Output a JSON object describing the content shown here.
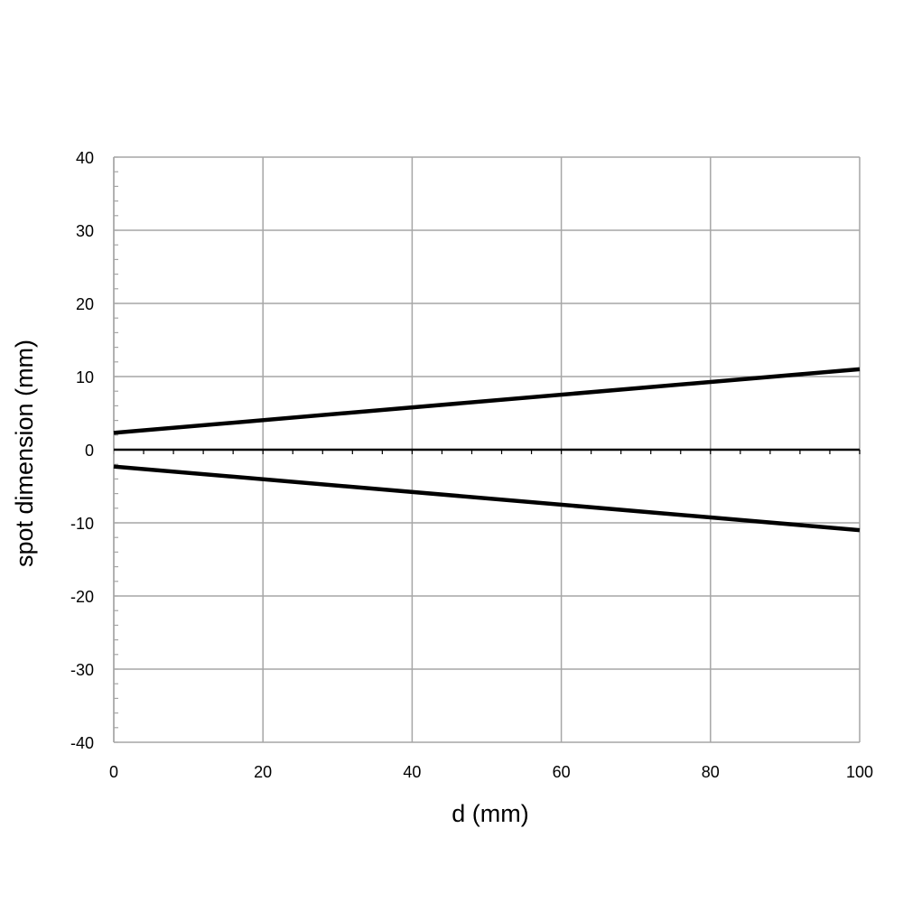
{
  "chart_data": {
    "type": "line",
    "title": "",
    "xlabel": "d (mm)",
    "ylabel": "spot dimension (mm)",
    "xlim": [
      0,
      100
    ],
    "ylim": [
      -40,
      40
    ],
    "x_ticks": [
      "0",
      "20",
      "40",
      "60",
      "80",
      "100"
    ],
    "y_ticks": [
      "40",
      "30",
      "20",
      "10",
      "0",
      "-10",
      "-20",
      "-30",
      "-40"
    ],
    "grid": true,
    "legend": "none",
    "series": [
      {
        "x": [
          0,
          100
        ],
        "y": [
          2.3,
          11.0
        ]
      },
      {
        "x": [
          0,
          100
        ],
        "y": [
          -2.3,
          -11.0
        ]
      }
    ],
    "colors": {
      "series": "#000000",
      "grid": "#a6a6a6",
      "axis": "#000000"
    }
  }
}
